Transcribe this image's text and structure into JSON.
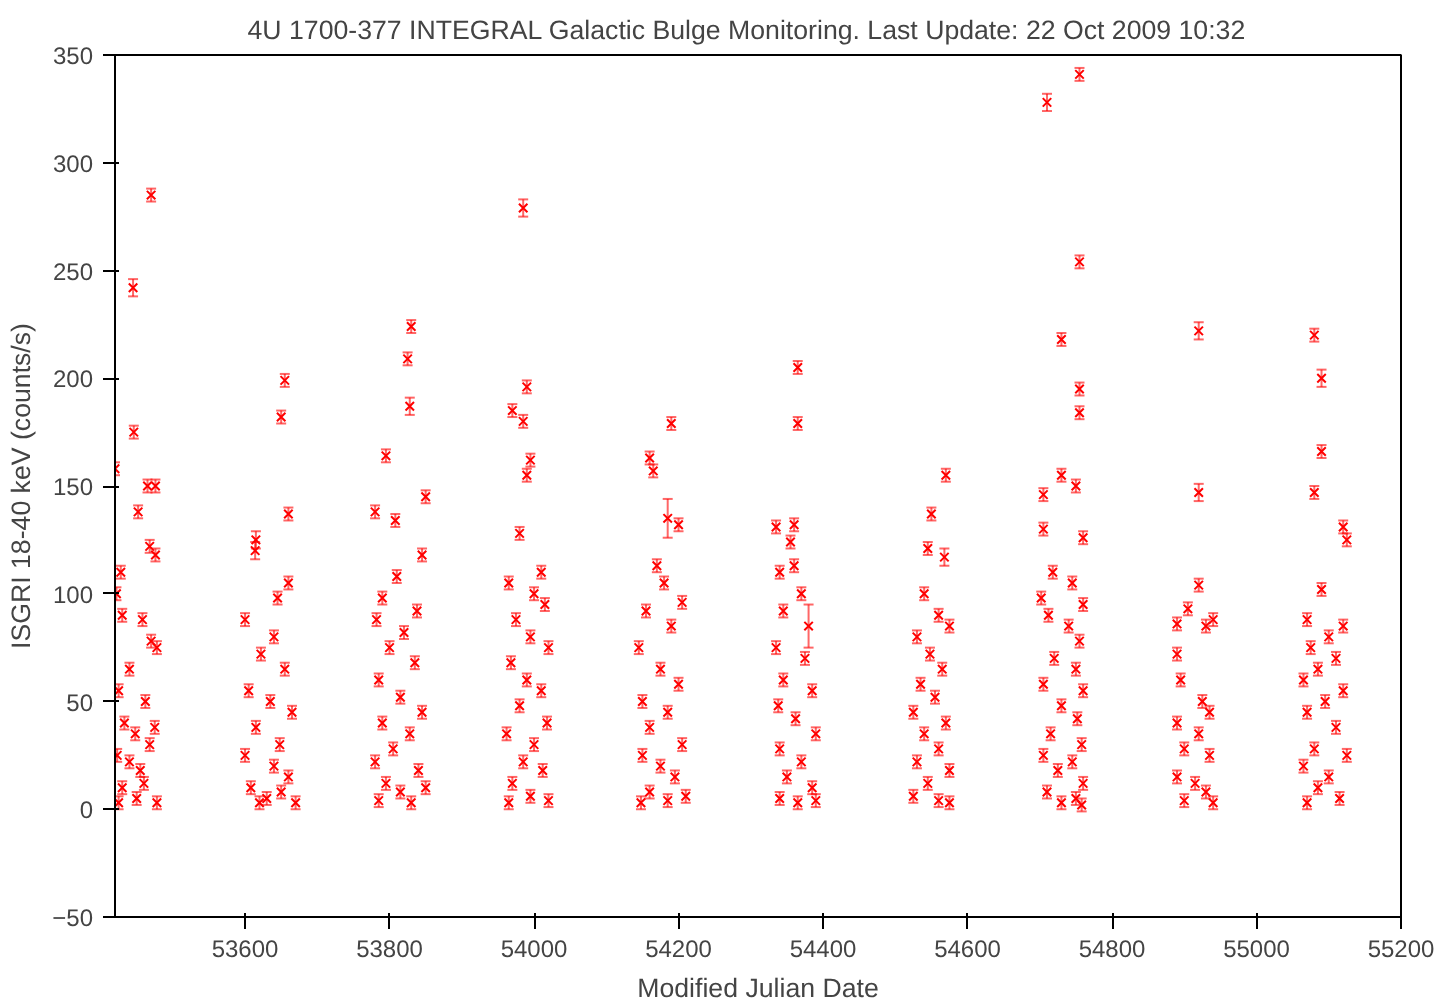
{
  "chart_data": {
    "type": "scatter",
    "title": "4U 1700-377   INTEGRAL Galactic Bulge Monitoring.  Last Update: 22 Oct 2009 10:32",
    "xlabel": "Modified Julian Date",
    "ylabel": "ISGRI 18-40 keV (counts/s)",
    "xlim": [
      53420,
      55200
    ],
    "ylim": [
      -50,
      350
    ],
    "xticks": [
      53600,
      53800,
      54000,
      54200,
      54400,
      54600,
      54800,
      55000,
      55200
    ],
    "yticks": [
      -50,
      0,
      50,
      100,
      150,
      200,
      250,
      300,
      350
    ],
    "grid": false,
    "marker": "cross",
    "series": [
      {
        "color": "#ff0000",
        "x": [
          53420,
          53445,
          53446,
          53470,
          53465,
          53476,
          53452,
          53468,
          53476,
          53428,
          53422,
          53430,
          53458,
          53470,
          53478,
          53440,
          53425,
          53462,
          53433,
          53448,
          53475,
          53423,
          53440,
          53455,
          53468,
          53430,
          53450,
          53478,
          53425,
          53460
        ],
        "values": [
          158,
          242,
          175,
          285,
          150,
          150,
          138,
          122,
          118,
          110,
          100,
          90,
          88,
          78,
          75,
          65,
          55,
          50,
          40,
          35,
          38,
          25,
          22,
          18,
          30,
          10,
          5,
          3,
          3,
          12
        ],
        "errors": [
          3,
          4,
          3,
          3,
          3,
          3,
          3,
          3,
          3,
          3,
          3,
          3,
          3,
          3,
          3,
          3,
          3,
          3,
          3,
          3,
          3,
          3,
          3,
          3,
          3,
          3,
          3,
          3,
          3,
          3
        ]
      },
      {
        "color": "#ff0000",
        "x": [
          53655,
          53650,
          53660,
          53615,
          53614,
          53660,
          53645,
          53600,
          53640,
          53622,
          53655,
          53605,
          53635,
          53665,
          53615,
          53648,
          53600,
          53640,
          53660,
          53608,
          53630,
          53670,
          53620,
          53650
        ],
        "values": [
          199,
          182,
          137,
          125,
          120,
          105,
          98,
          88,
          80,
          72,
          65,
          55,
          50,
          45,
          38,
          30,
          25,
          20,
          15,
          10,
          5,
          3,
          3,
          8
        ],
        "errors": [
          3,
          3,
          3,
          4,
          4,
          3,
          3,
          3,
          3,
          3,
          3,
          3,
          3,
          3,
          3,
          3,
          3,
          3,
          3,
          3,
          3,
          3,
          3,
          3
        ]
      },
      {
        "color": "#ff0000",
        "x": [
          53830,
          53825,
          53828,
          53795,
          53850,
          53780,
          53808,
          53845,
          53810,
          53790,
          53838,
          53782,
          53820,
          53800,
          53835,
          53785,
          53815,
          53845,
          53790,
          53828,
          53805,
          53780,
          53840,
          53795,
          53815,
          53785,
          53830,
          53850
        ],
        "values": [
          224,
          209,
          187,
          164,
          145,
          138,
          134,
          118,
          108,
          98,
          92,
          88,
          82,
          75,
          68,
          60,
          52,
          45,
          40,
          35,
          28,
          22,
          18,
          12,
          8,
          4,
          3,
          10
        ],
        "errors": [
          3,
          3,
          4,
          3,
          3,
          3,
          3,
          3,
          3,
          3,
          3,
          3,
          3,
          3,
          3,
          3,
          3,
          3,
          3,
          3,
          3,
          3,
          3,
          3,
          3,
          3,
          3,
          3
        ]
      },
      {
        "color": "#ff0000",
        "x": [
          53985,
          53990,
          53970,
          53985,
          53995,
          53990,
          53980,
          54010,
          53965,
          54000,
          54015,
          53975,
          53995,
          54020,
          53968,
          53990,
          54010,
          53980,
          54018,
          53962,
          54000,
          53985,
          54012,
          53970,
          53995,
          54020,
          53965
        ],
        "values": [
          279,
          196,
          185,
          180,
          162,
          155,
          128,
          110,
          105,
          100,
          95,
          88,
          80,
          75,
          68,
          60,
          55,
          48,
          40,
          35,
          30,
          22,
          18,
          12,
          6,
          4,
          3
        ],
        "errors": [
          4,
          3,
          3,
          3,
          3,
          3,
          3,
          3,
          3,
          3,
          3,
          3,
          3,
          3,
          3,
          3,
          3,
          3,
          3,
          3,
          3,
          3,
          3,
          3,
          3,
          3,
          3
        ]
      },
      {
        "color": "#ff0000",
        "x": [
          54190,
          54160,
          54165,
          54185,
          54200,
          54170,
          54180,
          54205,
          54155,
          54190,
          54145,
          54175,
          54200,
          54150,
          54185,
          54160,
          54205,
          54150,
          54175,
          54195,
          54160,
          54185,
          54148,
          54210
        ],
        "values": [
          179,
          163,
          157,
          135,
          132,
          113,
          105,
          96,
          92,
          85,
          75,
          65,
          58,
          50,
          45,
          38,
          30,
          25,
          20,
          15,
          8,
          4,
          3,
          6
        ],
        "errors": [
          3,
          3,
          3,
          9,
          3,
          3,
          3,
          3,
          3,
          3,
          3,
          3,
          3,
          3,
          3,
          3,
          3,
          3,
          3,
          3,
          3,
          3,
          3,
          3
        ]
      },
      {
        "color": "#ff0000",
        "x": [
          54365,
          54365,
          54360,
          54335,
          54355,
          54360,
          54340,
          54370,
          54345,
          54380,
          54335,
          54375,
          54345,
          54385,
          54338,
          54362,
          54390,
          54340,
          54370,
          54350,
          54385,
          54340,
          54365,
          54390
        ],
        "values": [
          205,
          179,
          132,
          131,
          124,
          113,
          110,
          100,
          92,
          85,
          75,
          70,
          60,
          55,
          48,
          42,
          35,
          28,
          22,
          15,
          10,
          5,
          3,
          4
        ],
        "errors": [
          3,
          3,
          3,
          3,
          3,
          3,
          3,
          3,
          3,
          10,
          3,
          3,
          3,
          3,
          3,
          3,
          3,
          3,
          3,
          3,
          3,
          3,
          3,
          3
        ]
      },
      {
        "color": "#ff0000",
        "x": [
          54570,
          54550,
          54545,
          54568,
          54540,
          54560,
          54575,
          54530,
          54548,
          54565,
          54535,
          54555,
          54525,
          54570,
          54540,
          54560,
          54530,
          54575,
          54545,
          54525,
          54560,
          54575
        ],
        "values": [
          155,
          137,
          121,
          117,
          100,
          90,
          85,
          80,
          72,
          65,
          58,
          52,
          45,
          40,
          35,
          28,
          22,
          18,
          12,
          6,
          4,
          3
        ],
        "errors": [
          3,
          3,
          3,
          4,
          3,
          3,
          3,
          3,
          3,
          3,
          3,
          3,
          3,
          3,
          3,
          3,
          3,
          3,
          3,
          3,
          3,
          3
        ]
      },
      {
        "color": "#ff0000",
        "x": [
          54755,
          54710,
          54755,
          54730,
          54755,
          54755,
          54730,
          54750,
          54705,
          54705,
          54760,
          54718,
          54745,
          54702,
          54760,
          54712,
          54740,
          54755,
          54720,
          54750,
          54705,
          54760,
          54730,
          54752,
          54715,
          54758,
          54705,
          54745,
          54725,
          54760,
          54710,
          54750,
          54730,
          54758
        ],
        "values": [
          341,
          328,
          254,
          218,
          195,
          184,
          155,
          150,
          146,
          130,
          126,
          110,
          105,
          98,
          95,
          90,
          85,
          78,
          70,
          65,
          58,
          55,
          48,
          42,
          35,
          30,
          25,
          22,
          18,
          12,
          8,
          5,
          3,
          2
        ],
        "errors": [
          3,
          4,
          3,
          3,
          3,
          3,
          3,
          3,
          3,
          3,
          3,
          3,
          3,
          3,
          3,
          3,
          3,
          3,
          3,
          3,
          3,
          3,
          3,
          3,
          3,
          3,
          3,
          3,
          3,
          3,
          3,
          3,
          3,
          3
        ]
      },
      {
        "color": "#ff0000",
        "x": [
          54920,
          54920,
          54920,
          54905,
          54940,
          54890,
          54930,
          54890,
          54895,
          54925,
          54935,
          54890,
          54920,
          54900,
          54935,
          54890,
          54915,
          54930,
          54900,
          54940
        ],
        "values": [
          222,
          147,
          104,
          93,
          88,
          86,
          85,
          72,
          60,
          50,
          45,
          40,
          35,
          28,
          25,
          15,
          12,
          8,
          4,
          3
        ],
        "errors": [
          4,
          4,
          3,
          3,
          3,
          3,
          3,
          3,
          3,
          3,
          3,
          3,
          3,
          3,
          3,
          3,
          3,
          3,
          3,
          3
        ]
      },
      {
        "color": "#ff0000",
        "x": [
          55080,
          55090,
          55090,
          55080,
          55120,
          55125,
          55090,
          55070,
          55120,
          55100,
          55075,
          55110,
          55085,
          55065,
          55120,
          55095,
          55070,
          55110,
          55080,
          55125,
          55065,
          55100,
          55085,
          55115,
          55070
        ],
        "values": [
          220,
          200,
          166,
          147,
          131,
          125,
          102,
          88,
          85,
          80,
          75,
          70,
          65,
          60,
          55,
          50,
          45,
          38,
          28,
          25,
          20,
          15,
          10,
          5,
          3
        ],
        "errors": [
          3,
          4,
          3,
          3,
          3,
          3,
          3,
          3,
          3,
          3,
          3,
          3,
          3,
          3,
          3,
          3,
          3,
          3,
          3,
          3,
          3,
          3,
          3,
          3,
          3
        ]
      }
    ]
  }
}
